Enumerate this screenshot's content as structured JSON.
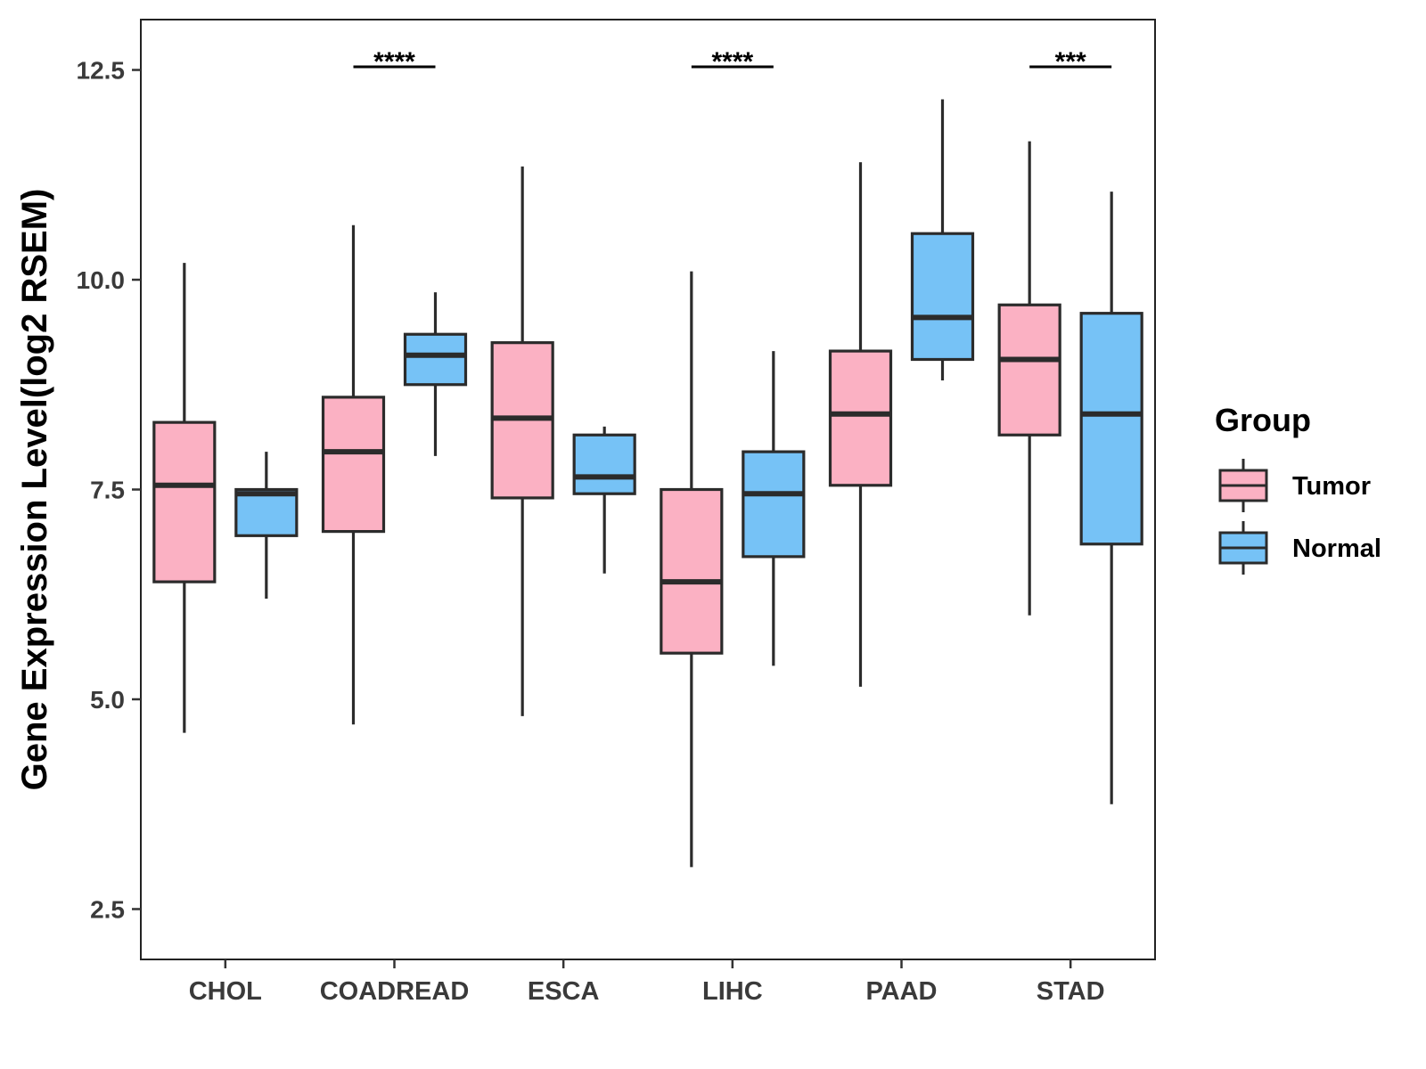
{
  "chart_data": {
    "type": "boxplot",
    "title": "",
    "xlabel": "",
    "ylabel": "Gene Expression Level(log2 RSEM)",
    "ylim": [
      1.9,
      13.1
    ],
    "yticks": [
      2.5,
      5.0,
      7.5,
      10.0,
      12.5
    ],
    "ytick_labels": [
      "2.5",
      "5.0",
      "7.5",
      "10.0",
      "12.5"
    ],
    "categories": [
      "CHOL",
      "COADREAD",
      "ESCA",
      "LIHC",
      "PAAD",
      "STAD"
    ],
    "legend": {
      "title": "Group",
      "position": "right",
      "items": [
        {
          "name": "Tumor",
          "color": "#FBB1C3"
        },
        {
          "name": "Normal",
          "color": "#76C2F6"
        }
      ]
    },
    "series": [
      {
        "name": "Tumor",
        "color": "#FBB1C3",
        "boxes": [
          {
            "category": "CHOL",
            "min": 4.6,
            "q1": 6.4,
            "median": 7.55,
            "q3": 8.3,
            "max": 10.2
          },
          {
            "category": "COADREAD",
            "min": 4.7,
            "q1": 7.0,
            "median": 7.95,
            "q3": 8.6,
            "max": 10.65
          },
          {
            "category": "ESCA",
            "min": 4.8,
            "q1": 7.4,
            "median": 8.35,
            "q3": 9.25,
            "max": 11.35
          },
          {
            "category": "LIHC",
            "min": 3.0,
            "q1": 5.55,
            "median": 6.4,
            "q3": 7.5,
            "max": 10.1
          },
          {
            "category": "PAAD",
            "min": 5.15,
            "q1": 7.55,
            "median": 8.4,
            "q3": 9.15,
            "max": 11.4
          },
          {
            "category": "STAD",
            "min": 6.0,
            "q1": 8.15,
            "median": 9.05,
            "q3": 9.7,
            "max": 11.65
          }
        ]
      },
      {
        "name": "Normal",
        "color": "#76C2F6",
        "boxes": [
          {
            "category": "CHOL",
            "min": 6.2,
            "q1": 6.95,
            "median": 7.45,
            "q3": 7.5,
            "max": 7.95
          },
          {
            "category": "COADREAD",
            "min": 7.9,
            "q1": 8.75,
            "median": 9.1,
            "q3": 9.35,
            "max": 9.85
          },
          {
            "category": "ESCA",
            "min": 6.5,
            "q1": 7.45,
            "median": 7.65,
            "q3": 8.15,
            "max": 8.25
          },
          {
            "category": "LIHC",
            "min": 5.4,
            "q1": 6.7,
            "median": 7.45,
            "q3": 7.95,
            "max": 9.15
          },
          {
            "category": "PAAD",
            "min": 8.8,
            "q1": 9.05,
            "median": 9.55,
            "q3": 10.55,
            "max": 12.15
          },
          {
            "category": "STAD",
            "min": 3.75,
            "q1": 6.85,
            "median": 8.4,
            "q3": 9.6,
            "max": 11.05
          }
        ]
      }
    ],
    "significance": [
      {
        "category": "COADREAD",
        "label": "****"
      },
      {
        "category": "LIHC",
        "label": "****"
      },
      {
        "category": "STAD",
        "label": "***"
      }
    ]
  }
}
